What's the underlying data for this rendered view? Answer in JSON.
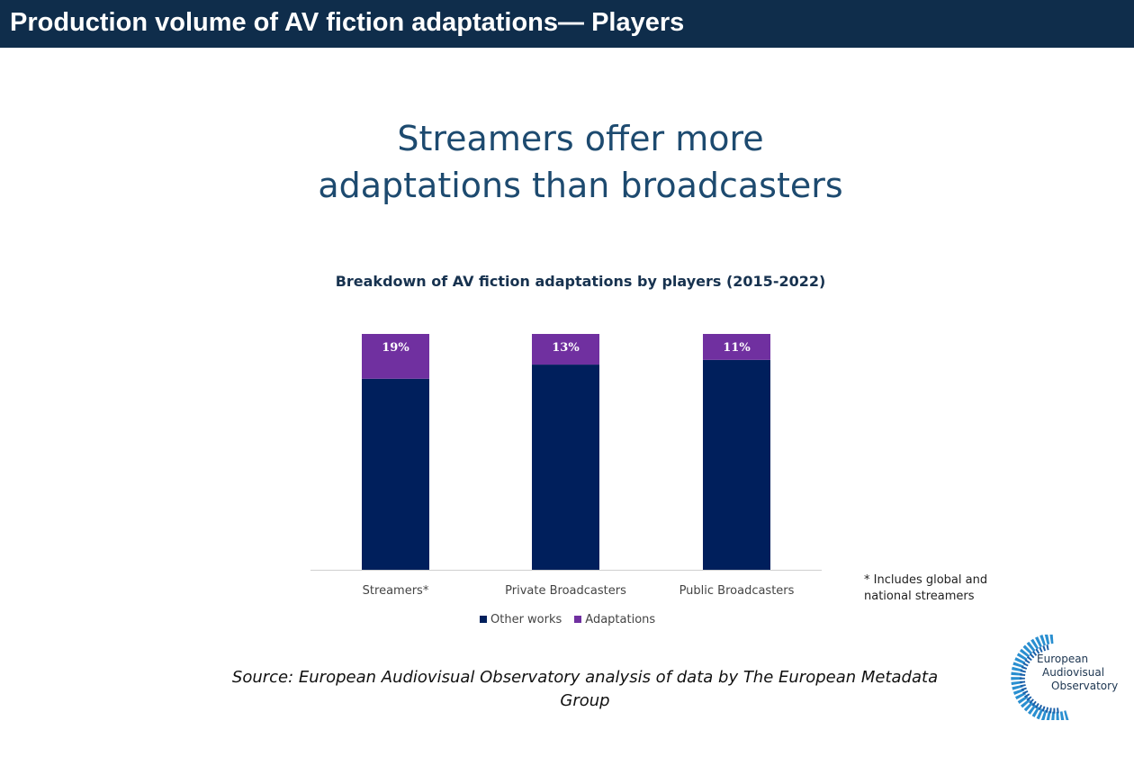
{
  "header": {
    "title": "Production volume of AV fiction adaptations— Players"
  },
  "headline": [
    "Streamers offer more",
    "adaptations than broadcasters"
  ],
  "chart_data": {
    "type": "bar",
    "stacked": true,
    "normalized": true,
    "title": "Breakdown of AV fiction adaptations by players (2015-2022)",
    "categories": [
      "Streamers*",
      "Private Broadcasters",
      "Public Broadcasters"
    ],
    "series": [
      {
        "name": "Other works",
        "values": [
          81,
          87,
          89
        ],
        "color": "#001f5c"
      },
      {
        "name": "Adaptations",
        "values": [
          19,
          13,
          11
        ],
        "color": "#7030a0"
      }
    ],
    "data_labels": [
      "19%",
      "13%",
      "11%"
    ],
    "ylim": [
      0,
      100
    ],
    "legend": "bottom"
  },
  "note": [
    "* Includes global and",
    "national streamers"
  ],
  "source": "Source: European Audiovisual Observatory analysis of data by The European Metadata Group",
  "logo": {
    "lines": [
      "European",
      "Audiovisual",
      "Observatory"
    ]
  }
}
